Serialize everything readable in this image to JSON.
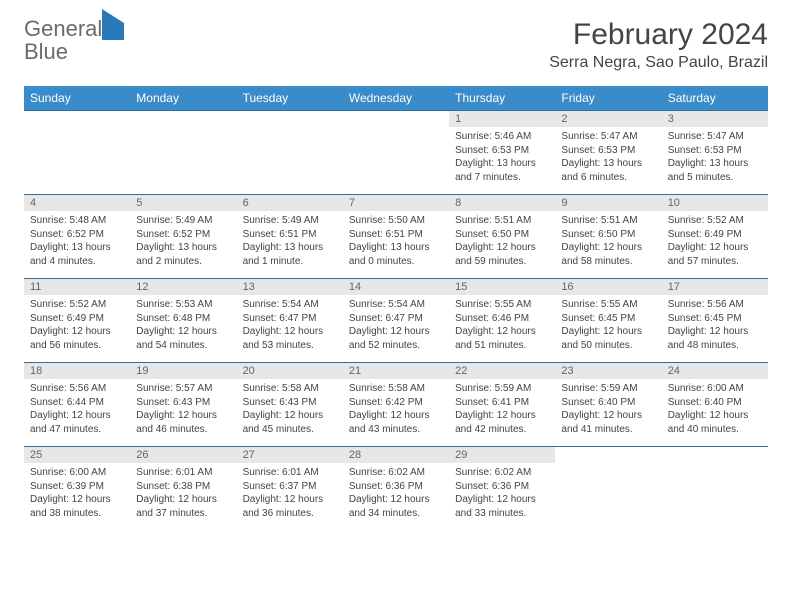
{
  "logo": {
    "word1": "General",
    "word2": "Blue"
  },
  "header": {
    "month_title": "February 2024",
    "location": "Serra Negra, Sao Paulo, Brazil"
  },
  "styling": {
    "header_bg": "#3a8bc9",
    "header_text": "#ffffff",
    "daynum_bg": "#e7e7e7",
    "row_border": "#2a6fa5",
    "body_text": "#444444",
    "title_text": "#444444",
    "logo_gray": "#6b6b6b",
    "logo_blue": "#2a7ab8",
    "page_bg": "#ffffff",
    "th_fontsize": 12,
    "daynum_fontsize": 11,
    "body_fontsize": 10,
    "title_fontsize": 30,
    "location_fontsize": 16
  },
  "calendar": {
    "weekdays": [
      "Sunday",
      "Monday",
      "Tuesday",
      "Wednesday",
      "Thursday",
      "Friday",
      "Saturday"
    ],
    "weeks": [
      [
        null,
        null,
        null,
        null,
        {
          "n": "1",
          "sr": "5:46 AM",
          "ss": "6:53 PM",
          "dl": "13 hours and 7 minutes."
        },
        {
          "n": "2",
          "sr": "5:47 AM",
          "ss": "6:53 PM",
          "dl": "13 hours and 6 minutes."
        },
        {
          "n": "3",
          "sr": "5:47 AM",
          "ss": "6:53 PM",
          "dl": "13 hours and 5 minutes."
        }
      ],
      [
        {
          "n": "4",
          "sr": "5:48 AM",
          "ss": "6:52 PM",
          "dl": "13 hours and 4 minutes."
        },
        {
          "n": "5",
          "sr": "5:49 AM",
          "ss": "6:52 PM",
          "dl": "13 hours and 2 minutes."
        },
        {
          "n": "6",
          "sr": "5:49 AM",
          "ss": "6:51 PM",
          "dl": "13 hours and 1 minute."
        },
        {
          "n": "7",
          "sr": "5:50 AM",
          "ss": "6:51 PM",
          "dl": "13 hours and 0 minutes."
        },
        {
          "n": "8",
          "sr": "5:51 AM",
          "ss": "6:50 PM",
          "dl": "12 hours and 59 minutes."
        },
        {
          "n": "9",
          "sr": "5:51 AM",
          "ss": "6:50 PM",
          "dl": "12 hours and 58 minutes."
        },
        {
          "n": "10",
          "sr": "5:52 AM",
          "ss": "6:49 PM",
          "dl": "12 hours and 57 minutes."
        }
      ],
      [
        {
          "n": "11",
          "sr": "5:52 AM",
          "ss": "6:49 PM",
          "dl": "12 hours and 56 minutes."
        },
        {
          "n": "12",
          "sr": "5:53 AM",
          "ss": "6:48 PM",
          "dl": "12 hours and 54 minutes."
        },
        {
          "n": "13",
          "sr": "5:54 AM",
          "ss": "6:47 PM",
          "dl": "12 hours and 53 minutes."
        },
        {
          "n": "14",
          "sr": "5:54 AM",
          "ss": "6:47 PM",
          "dl": "12 hours and 52 minutes."
        },
        {
          "n": "15",
          "sr": "5:55 AM",
          "ss": "6:46 PM",
          "dl": "12 hours and 51 minutes."
        },
        {
          "n": "16",
          "sr": "5:55 AM",
          "ss": "6:45 PM",
          "dl": "12 hours and 50 minutes."
        },
        {
          "n": "17",
          "sr": "5:56 AM",
          "ss": "6:45 PM",
          "dl": "12 hours and 48 minutes."
        }
      ],
      [
        {
          "n": "18",
          "sr": "5:56 AM",
          "ss": "6:44 PM",
          "dl": "12 hours and 47 minutes."
        },
        {
          "n": "19",
          "sr": "5:57 AM",
          "ss": "6:43 PM",
          "dl": "12 hours and 46 minutes."
        },
        {
          "n": "20",
          "sr": "5:58 AM",
          "ss": "6:43 PM",
          "dl": "12 hours and 45 minutes."
        },
        {
          "n": "21",
          "sr": "5:58 AM",
          "ss": "6:42 PM",
          "dl": "12 hours and 43 minutes."
        },
        {
          "n": "22",
          "sr": "5:59 AM",
          "ss": "6:41 PM",
          "dl": "12 hours and 42 minutes."
        },
        {
          "n": "23",
          "sr": "5:59 AM",
          "ss": "6:40 PM",
          "dl": "12 hours and 41 minutes."
        },
        {
          "n": "24",
          "sr": "6:00 AM",
          "ss": "6:40 PM",
          "dl": "12 hours and 40 minutes."
        }
      ],
      [
        {
          "n": "25",
          "sr": "6:00 AM",
          "ss": "6:39 PM",
          "dl": "12 hours and 38 minutes."
        },
        {
          "n": "26",
          "sr": "6:01 AM",
          "ss": "6:38 PM",
          "dl": "12 hours and 37 minutes."
        },
        {
          "n": "27",
          "sr": "6:01 AM",
          "ss": "6:37 PM",
          "dl": "12 hours and 36 minutes."
        },
        {
          "n": "28",
          "sr": "6:02 AM",
          "ss": "6:36 PM",
          "dl": "12 hours and 34 minutes."
        },
        {
          "n": "29",
          "sr": "6:02 AM",
          "ss": "6:36 PM",
          "dl": "12 hours and 33 minutes."
        },
        null,
        null
      ]
    ],
    "labels": {
      "sunrise": "Sunrise:",
      "sunset": "Sunset:",
      "daylight": "Daylight:"
    }
  }
}
